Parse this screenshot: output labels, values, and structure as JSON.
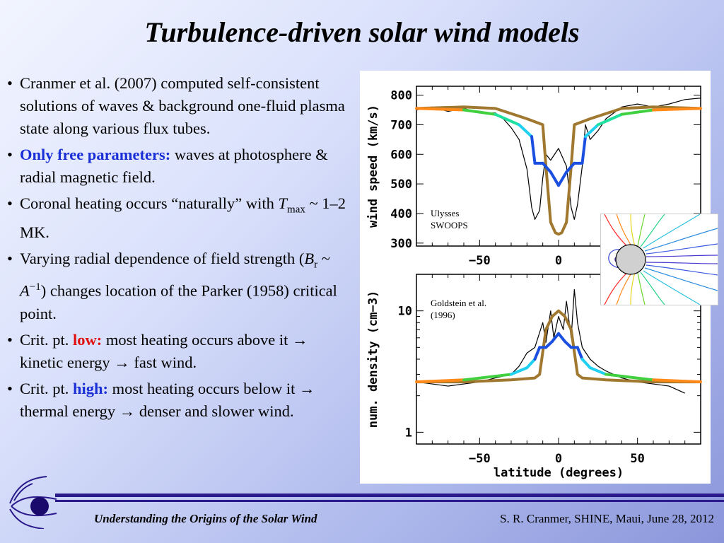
{
  "slide": {
    "title": "Turbulence-driven solar wind models",
    "bullets": [
      {
        "parts": [
          {
            "text": "Cranmer et al. (2007) computed self-consistent solutions of waves & background one-fluid plasma state along various flux tubes."
          }
        ]
      },
      {
        "parts": [
          {
            "text": "Only free parameters:",
            "style": "blue"
          },
          {
            "text": "  waves at photosphere & radial magnetic field."
          }
        ]
      },
      {
        "parts": [
          {
            "text": "Coronal heating occurs “naturally” with "
          },
          {
            "text": "T",
            "style": "italic"
          },
          {
            "text": "max",
            "style": "sub"
          },
          {
            "text": " ~ 1–2 MK."
          }
        ]
      },
      {
        "parts": [
          {
            "text": "Varying radial dependence of field strength  ("
          },
          {
            "text": "B",
            "style": "italic"
          },
          {
            "text": "r",
            "style": "sub"
          },
          {
            "text": " ~ "
          },
          {
            "text": "A",
            "style": "italic"
          },
          {
            "text": "−1",
            "style": "sup"
          },
          {
            "text": ")  changes location of the Parker (1958) critical point."
          }
        ]
      },
      {
        "parts": [
          {
            "text": "Crit. pt. "
          },
          {
            "text": "low:",
            "style": "red"
          },
          {
            "text": "  most heating occurs above it → kinetic energy → fast wind."
          }
        ]
      },
      {
        "parts": [
          {
            "text": "Crit. pt. "
          },
          {
            "text": "high:",
            "style": "blue"
          },
          {
            "text": " most heating occurs below it → thermal energy → denser and slower wind."
          }
        ]
      }
    ],
    "footer_left": "Understanding the Origins of the Solar Wind",
    "footer_right": "S. R. Cranmer, SHINE, Maui, June 28, 2012"
  },
  "chart_data": [
    {
      "type": "line",
      "ylabel": "wind speed (km/s)",
      "xlabel": "",
      "xlim": [
        -90,
        90
      ],
      "ylim": [
        290,
        830
      ],
      "x_ticks": [
        -50,
        0
      ],
      "y_ticks": [
        300,
        400,
        500,
        600,
        700,
        800
      ],
      "annotation": [
        "Ulysses",
        "SWOOPS"
      ],
      "series": [
        {
          "name": "",
          "color": "#000000",
          "x": [
            -90,
            -80,
            -70,
            -60,
            -50,
            -40,
            -35,
            -30,
            -25,
            -20,
            -17,
            -15,
            -12,
            -10,
            -8,
            -5,
            0,
            5,
            8,
            10,
            12,
            15,
            17,
            20,
            25,
            30,
            35,
            40,
            50,
            60,
            70,
            80,
            90
          ],
          "y": [
            750,
            760,
            745,
            755,
            740,
            740,
            720,
            690,
            650,
            550,
            420,
            380,
            410,
            520,
            600,
            580,
            620,
            560,
            420,
            380,
            430,
            560,
            700,
            650,
            680,
            720,
            740,
            760,
            770,
            760,
            770,
            785,
            790
          ]
        },
        {
          "name": "",
          "color": "#a07830",
          "x": [
            -90,
            -60,
            -40,
            -20,
            -10,
            -8,
            -5,
            -2,
            0,
            2,
            5,
            8,
            10,
            20,
            40,
            60,
            90
          ],
          "y": [
            755,
            760,
            755,
            720,
            700,
            560,
            370,
            335,
            330,
            335,
            370,
            560,
            700,
            720,
            755,
            760,
            755
          ]
        },
        {
          "name": "",
          "color": "#1a4fe0",
          "x": [
            -90,
            -60,
            -40,
            -25,
            -17,
            -15,
            -10,
            -5,
            0,
            5,
            10,
            15,
            17,
            25,
            40,
            60,
            90
          ],
          "y": [
            755,
            750,
            735,
            700,
            660,
            570,
            570,
            540,
            495,
            540,
            570,
            570,
            660,
            700,
            735,
            750,
            755
          ]
        }
      ]
    },
    {
      "type": "line",
      "ylabel": "num. density (cm−3)",
      "xlabel": "latitude (degrees)",
      "xlim": [
        -90,
        90
      ],
      "ylim": [
        0.8,
        20
      ],
      "yscale": "log",
      "x_ticks": [
        -50,
        0,
        50
      ],
      "y_ticks": [
        1,
        10
      ],
      "annotation": [
        "Goldstein et al.",
        "(1996)"
      ],
      "series": [
        {
          "name": "",
          "color": "#000000",
          "x": [
            -90,
            -80,
            -70,
            -60,
            -50,
            -40,
            -30,
            -25,
            -20,
            -15,
            -10,
            -8,
            -5,
            -3,
            0,
            3,
            5,
            8,
            10,
            12,
            15,
            20,
            25,
            30,
            40,
            50,
            60,
            70,
            80
          ],
          "y": [
            2.6,
            2.5,
            2.4,
            2.5,
            2.6,
            2.8,
            3.0,
            3.5,
            4.5,
            5.0,
            8.0,
            5.5,
            10.0,
            6.0,
            9.0,
            7.0,
            12.0,
            6.0,
            15.0,
            8.0,
            5.0,
            4.0,
            3.5,
            3.2,
            2.8,
            2.6,
            2.5,
            2.4,
            2.1
          ]
        },
        {
          "name": "",
          "color": "#a07830",
          "x": [
            -90,
            -60,
            -30,
            -15,
            -12,
            -8,
            -4,
            0,
            4,
            8,
            12,
            15,
            30,
            60,
            90
          ],
          "y": [
            2.6,
            2.6,
            2.7,
            2.8,
            3.0,
            7.0,
            9.0,
            10.0,
            9.0,
            7.0,
            3.0,
            2.8,
            2.7,
            2.6,
            2.6
          ]
        },
        {
          "name": "",
          "color": "#1a4fe0",
          "x": [
            -90,
            -60,
            -30,
            -20,
            -15,
            -12,
            -8,
            -4,
            0,
            4,
            8,
            12,
            15,
            20,
            30,
            60,
            90
          ],
          "y": [
            2.6,
            2.7,
            3.0,
            3.4,
            4.0,
            5.0,
            5.0,
            5.6,
            6.5,
            5.6,
            5.0,
            5.0,
            4.0,
            3.4,
            3.0,
            2.7,
            2.6
          ]
        }
      ]
    }
  ]
}
